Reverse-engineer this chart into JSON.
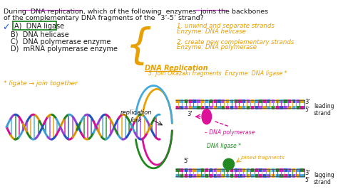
{
  "bg_color": "#ffffff",
  "text_color": "#1a1a1a",
  "orange_color": "#e8a000",
  "purple_color": "#cc44cc",
  "green_color": "#228822",
  "pink_color": "#dd1199",
  "blue_color": "#2255cc",
  "cyan_color": "#44aadd",
  "dark_color": "#222222",
  "title_line1": "During  DNA replication, which of the following  enzymes  joins the backbones",
  "title_line2": "of the complementary DNA fragments of the `3’-5’ strand?",
  "answer_a": "A)  DNA ligase",
  "answer_b": "B)  DNA helicase",
  "answer_c": "C)  DNA polymerase enzyme",
  "answer_d": "D)  mRNA polymerase enzyme",
  "note_italic": "* ligate → join together",
  "dna_rep_label": "DNA Replication",
  "step1a": "1. unwind and separate strands",
  "step1b": "Enzyme: DNA helicase",
  "step2a": "2. create new complementary strands",
  "step2b": "Enzyme: DNA polymerase",
  "step3": "3. join Okazaki fragments  Enzyme: DNA ligase",
  "rep_fork": "replication\nfork",
  "leading_strand": "leading\nstrand",
  "lagging_strand": "lagging\nstrand",
  "dna_pol_label": "DNA polymerase",
  "dna_lig_label": "DNA ligase",
  "joined_label": "joined fragments"
}
